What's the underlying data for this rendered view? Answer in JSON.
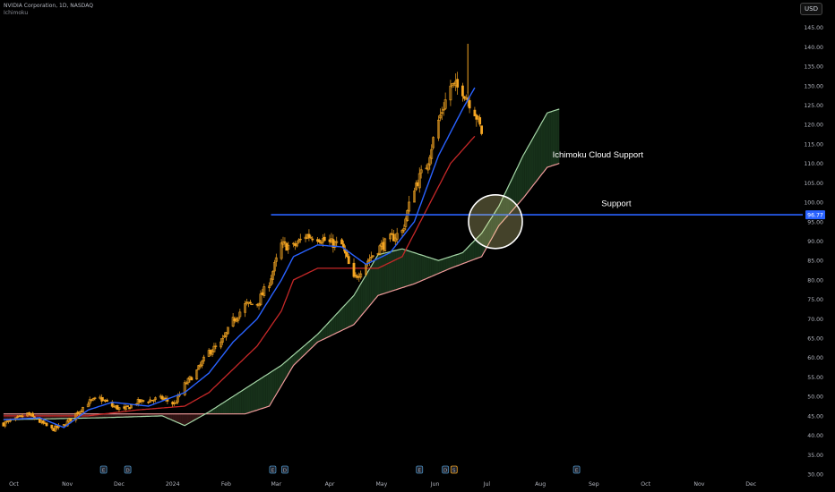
{
  "header": {
    "symbol_line": "NVIDIA Corporation, 1D, NASDAQ",
    "indicator": "Ichimoku",
    "currency": "USD"
  },
  "colors": {
    "background": "#000000",
    "conversion_line": "#2962ff",
    "base_line": "#c62828",
    "leading_span_a": "#a5d6a7",
    "leading_span_b": "#ef9a9a",
    "cloud_bull": "#1b3a1e",
    "cloud_bear": "#3b1717",
    "candles": "#f5a623",
    "support_line": "#2962ff",
    "highlight_circle": "#f3ee98"
  },
  "chart_data": {
    "type": "candlestick",
    "title": "NVIDIA Corporation, 1D, NASDAQ",
    "y_axis": {
      "range": [
        30,
        147
      ],
      "ticks": [
        30,
        35,
        40,
        45,
        50,
        55,
        60,
        65,
        70,
        75,
        80,
        85,
        90,
        95,
        100,
        105,
        110,
        115,
        120,
        125,
        130,
        135,
        140,
        145
      ],
      "tick_labels": [
        "30.00",
        "35.00",
        "40.00",
        "45.00",
        "50.00",
        "55.00",
        "60.00",
        "65.00",
        "70.00",
        "75.00",
        "80.00",
        "85.00",
        "90.00",
        "95.00",
        "100.00",
        "105.00",
        "110.00",
        "115.00",
        "120.00",
        "125.00",
        "130.00",
        "135.00",
        "140.00",
        "145.00"
      ]
    },
    "x_axis": {
      "start_date": "2023-09-23",
      "end_date": "2024-12-31",
      "ticks": [
        {
          "date": "2023-10-01",
          "label": "Oct"
        },
        {
          "date": "2023-11-01",
          "label": "Nov"
        },
        {
          "date": "2023-12-01",
          "label": "Dec"
        },
        {
          "date": "2024-01-01",
          "label": "2024"
        },
        {
          "date": "2024-02-01",
          "label": "Feb"
        },
        {
          "date": "2024-03-01",
          "label": "Mar"
        },
        {
          "date": "2024-04-01",
          "label": "Apr"
        },
        {
          "date": "2024-05-01",
          "label": "May"
        },
        {
          "date": "2024-06-01",
          "label": "Jun"
        },
        {
          "date": "2024-07-01",
          "label": "Jul"
        },
        {
          "date": "2024-08-01",
          "label": "Aug"
        },
        {
          "date": "2024-09-01",
          "label": "Sep"
        },
        {
          "date": "2024-10-01",
          "label": "Oct"
        },
        {
          "date": "2024-11-01",
          "label": "Nov"
        },
        {
          "date": "2024-12-01",
          "label": "Dec"
        }
      ]
    },
    "price_path": [
      [
        "2023-09-25",
        43.0
      ],
      [
        "2023-10-02",
        44.0
      ],
      [
        "2023-10-09",
        45.5
      ],
      [
        "2023-10-16",
        43.5
      ],
      [
        "2023-10-23",
        41.5
      ],
      [
        "2023-10-30",
        42.5
      ],
      [
        "2023-11-06",
        45.5
      ],
      [
        "2023-11-13",
        48.5
      ],
      [
        "2023-11-20",
        49.5
      ],
      [
        "2023-11-27",
        47.5
      ],
      [
        "2023-12-04",
        46.5
      ],
      [
        "2023-12-11",
        48.5
      ],
      [
        "2023-12-18",
        49.0
      ],
      [
        "2023-12-26",
        49.5
      ],
      [
        "2024-01-02",
        48.0
      ],
      [
        "2024-01-08",
        53.0
      ],
      [
        "2024-01-15",
        56.5
      ],
      [
        "2024-01-22",
        61.5
      ],
      [
        "2024-01-29",
        63.5
      ],
      [
        "2024-02-05",
        69.5
      ],
      [
        "2024-02-12",
        73.5
      ],
      [
        "2024-02-19",
        74.0
      ],
      [
        "2024-02-26",
        79.5
      ],
      [
        "2024-03-04",
        89.0
      ],
      [
        "2024-03-11",
        88.5
      ],
      [
        "2024-03-18",
        91.5
      ],
      [
        "2024-03-25",
        91.0
      ],
      [
        "2024-04-01",
        89.5
      ],
      [
        "2024-04-08",
        89.0
      ],
      [
        "2024-04-15",
        80.0
      ],
      [
        "2024-04-22",
        84.5
      ],
      [
        "2024-04-29",
        88.0
      ],
      [
        "2024-05-06",
        90.5
      ],
      [
        "2024-05-13",
        92.5
      ],
      [
        "2024-05-20",
        104.0
      ],
      [
        "2024-05-27",
        109.5
      ],
      [
        "2024-06-03",
        121.0
      ],
      [
        "2024-06-10",
        130.0
      ],
      [
        "2024-06-17",
        129.0
      ],
      [
        "2024-06-24",
        123.5
      ],
      [
        "2024-06-28",
        118.0
      ]
    ],
    "ichimoku": {
      "conversion_line": [
        [
          "2023-09-25",
          44.0
        ],
        [
          "2023-10-16",
          44.5
        ],
        [
          "2023-10-30",
          42.0
        ],
        [
          "2023-11-13",
          46.5
        ],
        [
          "2023-11-27",
          48.5
        ],
        [
          "2023-12-18",
          47.5
        ],
        [
          "2024-01-08",
          51.0
        ],
        [
          "2024-01-22",
          56.0
        ],
        [
          "2024-02-05",
          64.0
        ],
        [
          "2024-02-19",
          70.0
        ],
        [
          "2024-03-04",
          80.0
        ],
        [
          "2024-03-11",
          86.0
        ],
        [
          "2024-03-25",
          89.0
        ],
        [
          "2024-04-08",
          88.5
        ],
        [
          "2024-04-22",
          84.0
        ],
        [
          "2024-05-06",
          87.0
        ],
        [
          "2024-05-20",
          95.0
        ],
        [
          "2024-06-03",
          112.0
        ],
        [
          "2024-06-17",
          124.0
        ],
        [
          "2024-06-24",
          129.5
        ]
      ],
      "base_line": [
        [
          "2023-09-25",
          45.0
        ],
        [
          "2023-11-13",
          45.0
        ],
        [
          "2023-12-11",
          46.5
        ],
        [
          "2024-01-08",
          47.5
        ],
        [
          "2024-01-22",
          51.0
        ],
        [
          "2024-02-05",
          57.0
        ],
        [
          "2024-02-19",
          63.0
        ],
        [
          "2024-03-04",
          72.0
        ],
        [
          "2024-03-11",
          80.0
        ],
        [
          "2024-03-25",
          83.0
        ],
        [
          "2024-04-29",
          83.0
        ],
        [
          "2024-05-13",
          86.0
        ],
        [
          "2024-05-27",
          98.0
        ],
        [
          "2024-06-10",
          110.0
        ],
        [
          "2024-06-24",
          117.0
        ]
      ],
      "leading_span_a": [
        [
          "2023-09-25",
          44.0
        ],
        [
          "2023-11-20",
          44.5
        ],
        [
          "2023-12-26",
          45.0
        ],
        [
          "2024-01-08",
          42.5
        ],
        [
          "2024-01-22",
          46.0
        ],
        [
          "2024-02-12",
          52.0
        ],
        [
          "2024-03-04",
          58.0
        ],
        [
          "2024-03-25",
          66.0
        ],
        [
          "2024-04-15",
          76.0
        ],
        [
          "2024-04-29",
          86.5
        ],
        [
          "2024-05-13",
          88.0
        ],
        [
          "2024-06-03",
          85.0
        ],
        [
          "2024-06-17",
          87.0
        ],
        [
          "2024-06-28",
          92.0
        ],
        [
          "2024-07-08",
          99.0
        ],
        [
          "2024-07-22",
          112.0
        ],
        [
          "2024-08-05",
          123.0
        ],
        [
          "2024-08-12",
          124.0
        ]
      ],
      "leading_span_b": [
        [
          "2023-09-25",
          45.5
        ],
        [
          "2024-02-12",
          45.5
        ],
        [
          "2024-02-26",
          47.5
        ],
        [
          "2024-03-11",
          58.0
        ],
        [
          "2024-03-25",
          64.0
        ],
        [
          "2024-04-15",
          68.5
        ],
        [
          "2024-04-29",
          76.0
        ],
        [
          "2024-05-20",
          79.0
        ],
        [
          "2024-06-10",
          83.0
        ],
        [
          "2024-06-28",
          86.0
        ],
        [
          "2024-07-08",
          94.0
        ],
        [
          "2024-07-22",
          101.0
        ],
        [
          "2024-08-05",
          109.0
        ],
        [
          "2024-08-12",
          110.0
        ]
      ]
    },
    "support_level": {
      "value": 96.77,
      "label": "96.77",
      "start_date": "2024-02-27"
    },
    "annotations": [
      {
        "text": "Ichimoku Cloud Support",
        "date": "2024-08-08",
        "price": 111.5
      },
      {
        "text": "Support",
        "date": "2024-09-14",
        "price": 99.0
      }
    ],
    "highlight": {
      "type": "circle",
      "date": "2024-07-06",
      "price": 95.0
    },
    "events": [
      {
        "date": "2023-11-22",
        "glyph": "E"
      },
      {
        "date": "2023-12-06",
        "glyph": "D"
      },
      {
        "date": "2024-02-28",
        "glyph": "E"
      },
      {
        "date": "2024-03-06",
        "glyph": "D"
      },
      {
        "date": "2024-05-23",
        "glyph": "E"
      },
      {
        "date": "2024-06-07",
        "glyph": "D"
      },
      {
        "date": "2024-06-12",
        "glyph": "S"
      },
      {
        "date": "2024-08-22",
        "glyph": "E"
      }
    ]
  }
}
